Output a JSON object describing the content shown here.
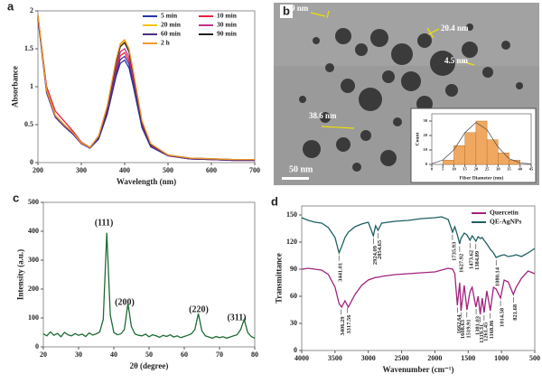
{
  "chart_data": [
    {
      "type": "line",
      "label": "a",
      "xlabel": "Wavelength (nm)",
      "ylabel": "Absorbance",
      "x": [
        200,
        220,
        240,
        260,
        280,
        300,
        320,
        340,
        360,
        380,
        390,
        400,
        410,
        420,
        440,
        460,
        500,
        550,
        600,
        650,
        700
      ],
      "xlim": [
        200,
        700
      ],
      "xticks": [
        200,
        300,
        400,
        500,
        600,
        700
      ],
      "ylim": [
        0,
        2
      ],
      "yticks": [
        0,
        0.5,
        1,
        1.5,
        2
      ],
      "series": [
        {
          "name": "5 min",
          "color": "#2636a8",
          "values": [
            1.9,
            0.92,
            0.6,
            0.48,
            0.38,
            0.25,
            0.19,
            0.31,
            0.64,
            1.13,
            1.31,
            1.35,
            1.25,
            1.0,
            0.46,
            0.21,
            0.09,
            0.05,
            0.04,
            0.03,
            0.03
          ]
        },
        {
          "name": "10 min",
          "color": "#e8213f",
          "values": [
            1.92,
            1.0,
            0.68,
            0.55,
            0.42,
            0.27,
            0.2,
            0.33,
            0.68,
            1.21,
            1.41,
            1.45,
            1.34,
            1.07,
            0.49,
            0.22,
            0.09,
            0.05,
            0.04,
            0.03,
            0.03
          ]
        },
        {
          "name": "20 min",
          "color": "#f2c500",
          "values": [
            1.95,
            0.95,
            0.62,
            0.5,
            0.4,
            0.26,
            0.2,
            0.35,
            0.74,
            1.33,
            1.55,
            1.6,
            1.48,
            1.18,
            0.54,
            0.24,
            0.1,
            0.06,
            0.05,
            0.04,
            0.04
          ]
        },
        {
          "name": "30 min",
          "color": "#c2318c",
          "values": [
            1.93,
            0.94,
            0.61,
            0.49,
            0.39,
            0.25,
            0.2,
            0.34,
            0.7,
            1.25,
            1.46,
            1.5,
            1.39,
            1.11,
            0.51,
            0.23,
            0.09,
            0.05,
            0.04,
            0.03,
            0.03
          ]
        },
        {
          "name": "60 min",
          "color": "#4b2d8f",
          "values": [
            1.91,
            0.93,
            0.6,
            0.48,
            0.38,
            0.25,
            0.19,
            0.32,
            0.66,
            1.17,
            1.36,
            1.4,
            1.3,
            1.04,
            0.47,
            0.21,
            0.09,
            0.05,
            0.04,
            0.03,
            0.03
          ]
        },
        {
          "name": "90 min",
          "color": "#222222",
          "values": [
            1.94,
            0.95,
            0.62,
            0.5,
            0.4,
            0.26,
            0.2,
            0.35,
            0.73,
            1.31,
            1.53,
            1.58,
            1.46,
            1.17,
            0.53,
            0.24,
            0.1,
            0.06,
            0.05,
            0.04,
            0.04
          ]
        },
        {
          "name": "2 h",
          "color": "#f39a2b",
          "values": [
            1.95,
            0.95,
            0.62,
            0.5,
            0.4,
            0.26,
            0.2,
            0.35,
            0.75,
            1.35,
            1.57,
            1.62,
            1.5,
            1.2,
            0.55,
            0.25,
            0.1,
            0.06,
            0.05,
            0.04,
            0.04
          ]
        }
      ]
    },
    {
      "type": "image",
      "label": "b",
      "annotations": [
        "9 nm",
        "20.4 nm",
        "4.5 nm",
        "38.6 nm"
      ],
      "scale_bar": "50 nm"
    },
    {
      "type": "histogram",
      "xlabel": "Fiber Diameter (nm)",
      "ylabel": "Count",
      "bins": [
        0,
        5,
        10,
        15,
        20,
        25,
        30,
        35,
        40,
        45
      ],
      "values": [
        0,
        3,
        13,
        22,
        30,
        17,
        8,
        3,
        0
      ],
      "color": "#f0a860",
      "xlim": [
        0,
        45
      ],
      "xticks": [
        0,
        5,
        10,
        15,
        20,
        25,
        30,
        35,
        40,
        45
      ],
      "ylim": [
        0,
        35
      ],
      "yticks": [
        0,
        10,
        20,
        30
      ],
      "fit": {
        "x": [
          0,
          5,
          10,
          15,
          20,
          25,
          30,
          35,
          40,
          45
        ],
        "values": [
          0.5,
          3,
          10,
          22,
          29,
          24,
          12,
          4,
          1,
          0.3
        ],
        "color": "#555555"
      }
    },
    {
      "type": "line",
      "label": "c",
      "xlabel": "2θ (degree)",
      "ylabel": "Intensity (a.u.)",
      "annotations": [
        "(111)",
        "(200)",
        "(220)",
        "(311)"
      ],
      "x": [
        20,
        21,
        22,
        23,
        24,
        25,
        26,
        27,
        28,
        29,
        30,
        31,
        32,
        33,
        34,
        35,
        36,
        37,
        38,
        39,
        40,
        41,
        42,
        43,
        44,
        45,
        46,
        47,
        48,
        49,
        50,
        51,
        52,
        53,
        54,
        55,
        56,
        57,
        58,
        59,
        60,
        61,
        62,
        63,
        64,
        65,
        66,
        67,
        68,
        69,
        70,
        71,
        72,
        73,
        74,
        75,
        76,
        77,
        78,
        79,
        80
      ],
      "xlim": [
        20,
        80
      ],
      "xticks": [
        20,
        30,
        40,
        50,
        60,
        70,
        80
      ],
      "ylim": [
        0,
        500
      ],
      "yticks": [
        0,
        100,
        200,
        300,
        400,
        500
      ],
      "series": [
        {
          "name": "XRD",
          "color": "#1e6b35",
          "values": [
            45,
            38,
            52,
            40,
            47,
            35,
            50,
            42,
            38,
            46,
            40,
            44,
            36,
            48,
            41,
            45,
            52,
            95,
            395,
            110,
            50,
            42,
            45,
            60,
            150,
            70,
            45,
            40,
            38,
            44,
            35,
            42,
            38,
            33,
            40,
            36,
            42,
            34,
            38,
            32,
            36,
            40,
            45,
            60,
            115,
            55,
            38,
            34,
            30,
            36,
            32,
            35,
            30,
            34,
            38,
            42,
            60,
            95,
            50,
            36,
            30
          ]
        }
      ]
    },
    {
      "type": "line",
      "label": "d",
      "xlabel": "Wavenumber (cm⁻¹)",
      "ylabel": "Transmittance",
      "x": [
        4000,
        3900,
        3800,
        3700,
        3600,
        3500,
        3440,
        3400,
        3350,
        3300,
        3200,
        3100,
        3000,
        2924,
        2890,
        2854,
        2800,
        2600,
        2400,
        2200,
        2000,
        1900,
        1800,
        1735,
        1700,
        1662,
        1627,
        1608,
        1560,
        1519,
        1473,
        1440,
        1384,
        1350,
        1319,
        1290,
        1261,
        1220,
        1168,
        1120,
        1080,
        1014,
        960,
        900,
        821,
        780,
        700,
        600,
        500
      ],
      "xlim": [
        4000,
        500
      ],
      "xticks": [
        4000,
        3500,
        3000,
        2500,
        2000,
        1500,
        1000,
        500
      ],
      "ylim": [
        0,
        160
      ],
      "yticks": [
        0,
        30,
        60,
        90,
        120,
        150
      ],
      "series": [
        {
          "name": "Quercetin",
          "color": "#a0237c",
          "peaks": [
            3406.29,
            3317.56,
            1662.64,
            1608.63,
            1519.91,
            1381.03,
            1319.31,
            1261.45,
            1168.86,
            1014.58,
            821.68
          ],
          "values": [
            90,
            91,
            90,
            89,
            84,
            70,
            52,
            48,
            55,
            48,
            62,
            72,
            78,
            80,
            81,
            81,
            82,
            84,
            85,
            86,
            87,
            89,
            91,
            90,
            85,
            50,
            75,
            44,
            72,
            45,
            65,
            70,
            48,
            60,
            40,
            58,
            42,
            66,
            44,
            70,
            68,
            58,
            78,
            76,
            62,
            70,
            80,
            88,
            85
          ]
        },
        {
          "name": "QE-AgNPs",
          "color": "#1f5f62",
          "peaks": [
            3441.01,
            2924.09,
            2854.65,
            1735.93,
            1627.92,
            1473.62,
            1384.89,
            1080.14
          ],
          "values": [
            147,
            144,
            142,
            141,
            136,
            125,
            108,
            115,
            125,
            131,
            137,
            140,
            142,
            127,
            138,
            133,
            141,
            143,
            144,
            146,
            147,
            148,
            145,
            131,
            137,
            128,
            118,
            124,
            130,
            128,
            122,
            127,
            121,
            126,
            124,
            125,
            122,
            118,
            112,
            108,
            103,
            105,
            106,
            104,
            105,
            106,
            104,
            108,
            113
          ]
        }
      ]
    }
  ]
}
